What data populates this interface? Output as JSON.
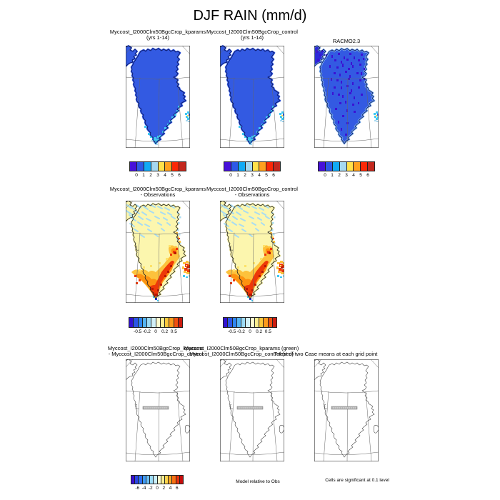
{
  "title": "DJF RAIN (mm/d)",
  "panels": [
    {
      "line1": "Myccost_I2000Clm50BgcCrop_kparams",
      "line2": "(yrs 1-14)"
    },
    {
      "line1": "Myccost_I2000Clm50BgcCrop_control",
      "line2": "(yrs 1-14)"
    },
    {
      "line1": "RACMO2.3"
    },
    {
      "line1": "Myccost_I2000Clm50BgcCrop_kparams",
      "line2": "- Observations"
    },
    {
      "line1": "Myccost_I2000Clm50BgcCrop_control",
      "line2": "- Observations"
    },
    {
      "line1": "Myccost_I2000Clm50BgcCrop_kparams",
      "line2": "- Myccost_I2000Clm50BgcCrop_control"
    },
    {
      "line1": "Myccost_I2000Clm50BgcCrop_kparams (green)",
      "line2": "Myccost_I2000Clm50BgcCrop_control (red)"
    },
    {
      "line1": "T-test of two Case means at each grid point"
    }
  ],
  "notes": {
    "model_relative": "Model relative to Obs",
    "cells_significant": "Cells are significant at 0.1 level"
  },
  "colorbars": {
    "rain": {
      "colors": [
        "#4711d9",
        "#2e59e8",
        "#12aaf5",
        "#a5d8f0",
        "#ffe14a",
        "#ffa01e",
        "#fb2807",
        "#c3281e"
      ],
      "labels": [
        "0",
        "1",
        "2",
        "3",
        "4",
        "5",
        "6"
      ],
      "fracs": [
        0.125,
        0.25,
        0.375,
        0.5,
        0.625,
        0.75,
        0.875
      ]
    },
    "diff": {
      "colors": [
        "#3212d2",
        "#2b55e6",
        "#2f86f2",
        "#55b4f4",
        "#9cdaf6",
        "#d2f0f8",
        "#fdfccf",
        "#fdee8f",
        "#fdc83c",
        "#fd9a1c",
        "#f0500f",
        "#cd1c0f"
      ],
      "labels": [
        "-0.5",
        "-0.2",
        "0",
        "0.2",
        "0.5"
      ],
      "fracs": [
        0.1667,
        0.3333,
        0.5,
        0.6667,
        0.8333
      ]
    },
    "model": {
      "colors": [
        "#3a0dd2",
        "#2b46e4",
        "#2e6ef0",
        "#3f9af5",
        "#6cc0f7",
        "#9cdcf8",
        "#c8eef9",
        "#fdfccb",
        "#fdf094",
        "#fdd44c",
        "#fdab28",
        "#f97012",
        "#e8310c",
        "#c40d0c"
      ],
      "labels": [
        "-6",
        "-4",
        "-2",
        "0",
        "2",
        "4",
        "6"
      ],
      "fracs": [
        0.125,
        0.25,
        0.375,
        0.5,
        0.625,
        0.75,
        0.875
      ]
    }
  },
  "map_colors": {
    "rain_base": "#335ae2",
    "rain_accent": "#3ec8f4",
    "racmo_speckle": "#3b12d4",
    "diff_base": "#fcf6ae",
    "diff_cool": "#a8dcf2",
    "diff_warm1": "#fde268",
    "diff_warm2": "#fdc23c",
    "diff_warm3": "#fd9210",
    "diff_warm4": "#ee3808",
    "diff_warm5": "#b81604"
  },
  "chart_data": [
    {
      "type": "heatmap",
      "title": "Myccost_I2000Clm50BgcCrop_kparams (yrs 1-14)",
      "region": "Greenland",
      "variable": "DJF RAIN (mm/d)",
      "scale_ticks": [
        0,
        1,
        2,
        3,
        4,
        5,
        6
      ],
      "legend_position": "bottom",
      "dominant_value_range": "0-1 mm/d (blue) with 2-3 mm/d (cyan) along southeast coast and southern tip"
    },
    {
      "type": "heatmap",
      "title": "Myccost_I2000Clm50BgcCrop_control (yrs 1-14)",
      "region": "Greenland",
      "variable": "DJF RAIN (mm/d)",
      "scale_ticks": [
        0,
        1,
        2,
        3,
        4,
        5,
        6
      ],
      "legend_position": "bottom",
      "dominant_value_range": "0-1 mm/d (blue) with 2-3 mm/d (cyan) along southeast coast and southern tip"
    },
    {
      "type": "heatmap",
      "title": "RACMO2.3",
      "region": "Greenland",
      "variable": "DJF RAIN (mm/d)",
      "scale_ticks": [
        0,
        1,
        2,
        3,
        4,
        5,
        6
      ],
      "legend_position": "bottom",
      "dominant_value_range": "0-1 mm/d (blue) with scattered <0 (indigo) patches"
    },
    {
      "type": "heatmap",
      "title": "Myccost_I2000Clm50BgcCrop_kparams - Observations",
      "region": "Greenland",
      "variable": "DJF RAIN difference (mm/d)",
      "scale_ticks": [
        -0.5,
        -0.2,
        0,
        0.2,
        0.5
      ],
      "legend_position": "bottom",
      "dominant_value_range": "near 0 (pale yellow) interior, slightly negative (light blue) north, +0.2 to >0.5 (orange/red) south and southeast coast"
    },
    {
      "type": "heatmap",
      "title": "Myccost_I2000Clm50BgcCrop_control - Observations",
      "region": "Greenland",
      "variable": "DJF RAIN difference (mm/d)",
      "scale_ticks": [
        -0.5,
        -0.2,
        0,
        0.2,
        0.5
      ],
      "legend_position": "bottom",
      "dominant_value_range": "near 0 (pale yellow) interior, slightly negative (light blue) north, +0.2 to >0.5 (orange/red) south and southeast coast"
    },
    {
      "type": "heatmap",
      "title": "Myccost_I2000Clm50BgcCrop_kparams - Myccost_I2000Clm50BgcCrop_control",
      "region": "Greenland",
      "variable": "DJF RAIN difference (mm/d)",
      "scale_ticks": [
        -6,
        -4,
        -2,
        0,
        2,
        4,
        6
      ],
      "legend_position": "bottom",
      "dominant_value_range": "constant field (no contours)"
    },
    {
      "type": "heatmap",
      "title": "Myccost_I2000Clm50BgcCrop_kparams (green) Myccost_I2000Clm50BgcCrop_control (red)",
      "region": "Greenland",
      "variable": "Model relative to Obs",
      "dominant_value_range": "constant field (no contours)"
    },
    {
      "type": "heatmap",
      "title": "T-test of two Case means at each grid point",
      "region": "Greenland",
      "variable": "significance",
      "note": "Cells are significant at 0.1 level",
      "dominant_value_range": "constant field (no contours)"
    }
  ]
}
